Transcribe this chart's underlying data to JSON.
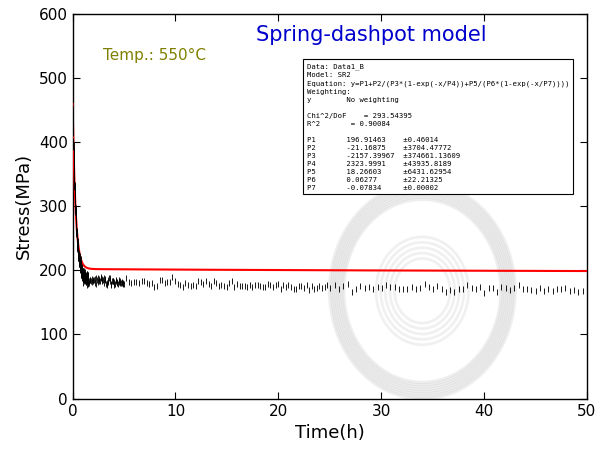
{
  "title": "Spring-dashpot model",
  "temp_label": "Temp.: 550°C",
  "xlabel": "Time(h)",
  "ylabel": "Stress(MPa)",
  "xlim": [
    0,
    50
  ],
  "ylim": [
    0,
    600
  ],
  "xticks": [
    0,
    10,
    20,
    30,
    40,
    50
  ],
  "yticks": [
    0,
    100,
    200,
    300,
    400,
    500,
    600
  ],
  "bg_color": "#ffffff",
  "data_color": "#000000",
  "fit_color": "#ff0000",
  "title_color": "#0000cd",
  "temp_color": "#808000",
  "info_box": {
    "lines": [
      "Data: Data1_B",
      "Model: SR2",
      "Equation: y=P1+P2/(P3*(1-exp(-x/P4))+P5/(P6*(1-exp(-x/P7))))",
      "Weighting:",
      "y        No weighting",
      "",
      "Chi^2/DoF    = 293.54395",
      "R^2       = 0.90084",
      "",
      "P1       196.91463    ±0.46014",
      "P2       -21.16875    ±3704.47772",
      "P3       -2157.39967  ±374661.13609",
      "P4       2323.9991    ±43935.8189",
      "P5       18.26603     ±6431.62954",
      "P6       0.06277      ±22.21325",
      "P7       -0.07834     ±0.00002"
    ]
  }
}
